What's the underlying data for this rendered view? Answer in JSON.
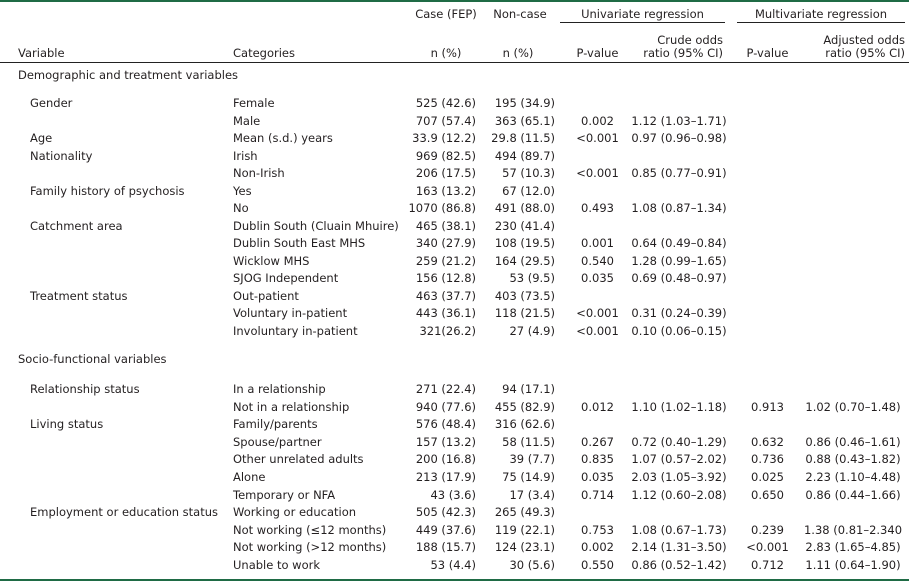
{
  "header": {
    "groups": [
      "Case (FEP)",
      "Non-case",
      "Univariate regression",
      "Multivariate regression"
    ],
    "columns": [
      "Variable",
      "Categories",
      "n (%)",
      "n (%)",
      "P-value",
      "Crude odds ratio (95% CI)",
      "P-value",
      "Adjusted odds ratio (95% CI)"
    ]
  },
  "sections": [
    {
      "title": "Demographic and treatment variables",
      "rows": [
        [
          "Gender",
          "Female",
          "525 (42.6)",
          "195 (34.9)",
          null,
          null,
          null,
          null
        ],
        [
          null,
          "Male",
          "707 (57.4)",
          "363 (65.1)",
          "0.002",
          "1.12 (1.03–1.71)",
          null,
          null
        ],
        [
          "Age",
          "Mean (s.d.) years",
          "33.9 (12.2)",
          "29.8 (11.5)",
          "<0.001",
          "0.97 (0.96–0.98)",
          null,
          null
        ],
        [
          "Nationality",
          "Irish",
          "969 (82.5)",
          "494 (89.7)",
          null,
          null,
          null,
          null
        ],
        [
          null,
          "Non-Irish",
          "206 (17.5)",
          "57 (10.3)",
          "<0.001",
          "0.85 (0.77–0.91)",
          null,
          null
        ],
        [
          "Family history of psychosis",
          "Yes",
          "163 (13.2)",
          "67 (12.0)",
          null,
          null,
          null,
          null
        ],
        [
          null,
          "No",
          "1070 (86.8)",
          "491 (88.0)",
          "0.493",
          "1.08 (0.87–1.34)",
          null,
          null
        ],
        [
          "Catchment area",
          "Dublin South (Cluain Mhuire)",
          "465 (38.1)",
          "230 (41.4)",
          null,
          null,
          null,
          null
        ],
        [
          null,
          "Dublin South East MHS",
          "340 (27.9)",
          "108 (19.5)",
          "0.001",
          "0.64 (0.49–0.84)",
          null,
          null
        ],
        [
          null,
          "Wicklow MHS",
          "259 (21.2)",
          "164 (29.5)",
          "0.540",
          "1.28 (0.99–1.65)",
          null,
          null
        ],
        [
          null,
          "SJOG Independent",
          "156 (12.8)",
          "53 (9.5)",
          "0.035",
          "0.69 (0.48–0.97)",
          null,
          null
        ],
        [
          "Treatment status",
          "Out-patient",
          "463 (37.7)",
          "403 (73.5)",
          null,
          null,
          null,
          null
        ],
        [
          null,
          "Voluntary in-patient",
          "443 (36.1)",
          "118 (21.5)",
          "<0.001",
          "0.31 (0.24–0.39)",
          null,
          null
        ],
        [
          null,
          "Involuntary in-patient",
          "321(26.2)",
          "27 (4.9)",
          "<0.001",
          "0.10 (0.06–0.15)",
          null,
          null
        ]
      ]
    },
    {
      "title": "Socio-functional variables",
      "rows": [
        [
          "Relationship status",
          "In a relationship",
          "271 (22.4)",
          "94 (17.1)",
          null,
          null,
          null,
          null
        ],
        [
          null,
          "Not in a relationship",
          "940 (77.6)",
          "455 (82.9)",
          "0.012",
          "1.10 (1.02–1.18)",
          "0.913",
          "1.02 (0.70–1.48)"
        ],
        [
          "Living status",
          "Family/parents",
          "576 (48.4)",
          "316 (62.6)",
          null,
          null,
          null,
          null
        ],
        [
          null,
          "Spouse/partner",
          "157 (13.2)",
          "58 (11.5)",
          "0.267",
          "0.72 (0.40–1.29)",
          "0.632",
          "0.86 (0.46–1.61)"
        ],
        [
          null,
          "Other unrelated adults",
          "200 (16.8)",
          "39 (7.7)",
          "0.835",
          "1.07 (0.57–2.02)",
          "0.736",
          "0.88 (0.43–1.82)"
        ],
        [
          null,
          "Alone",
          "213 (17.9)",
          "75 (14.9)",
          "0.035",
          "2.03 (1.05–3.92)",
          "0.025",
          "2.23 (1.10–4.48)"
        ],
        [
          null,
          "Temporary or NFA",
          "43 (3.6)",
          "17 (3.4)",
          "0.714",
          "1.12 (0.60–2.08)",
          "0.650",
          "0.86 (0.44–1.66)"
        ],
        [
          "Employment or education status",
          "Working or education",
          "505 (42.3)",
          "265 (49.3)",
          null,
          null,
          null,
          null
        ],
        [
          null,
          "Not working (≤12 months)",
          "449 (37.6)",
          "119 (22.1)",
          "0.753",
          "1.08 (0.67–1.73)",
          "0.239",
          "1.38 (0.81–2.340"
        ],
        [
          null,
          "Not working (>12 months)",
          "188 (15.7)",
          "124 (23.1)",
          "0.002",
          "2.14 (1.31–3.50)",
          "<0.001",
          "2.83 (1.65–4.85)"
        ],
        [
          null,
          "Unable to work",
          "53 (4.4)",
          "30 (5.6)",
          "0.550",
          "0.86 (0.52–1.42)",
          "0.712",
          "1.11 (0.64–1.90)"
        ]
      ]
    }
  ]
}
